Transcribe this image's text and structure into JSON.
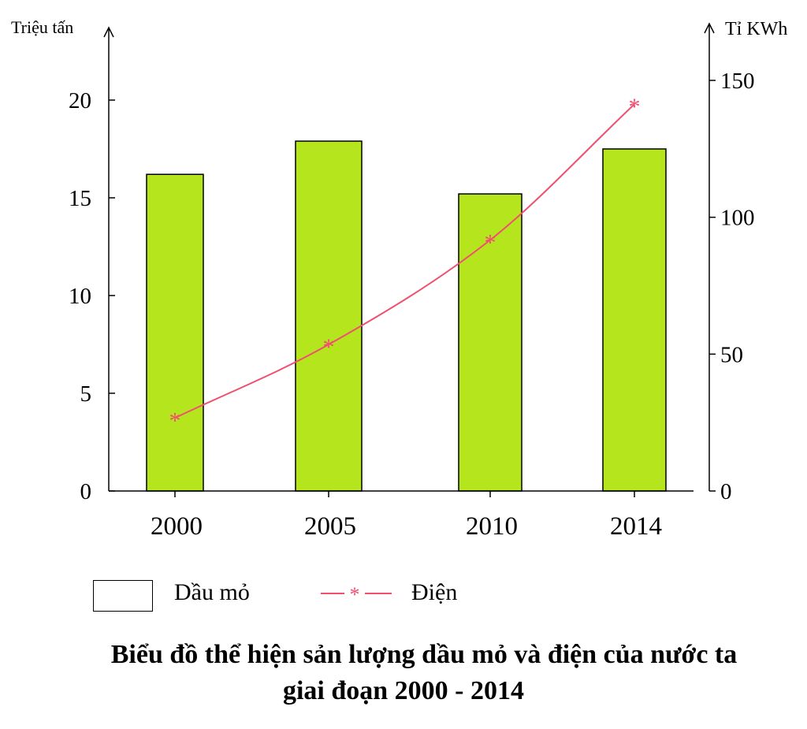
{
  "chart_data": {
    "type": "bar",
    "title": "Biểu đồ thể hiện sản lượng dầu mỏ và điện của nước ta giai đoạn 2000 - 2014",
    "title_lines": [
      "Biểu đồ thể hiện sản lượng dầu mỏ và điện của nước ta",
      "giai đoạn 2000 - 2014"
    ],
    "categories": [
      "2000",
      "2005",
      "2010",
      "2014"
    ],
    "y_left": {
      "label": "Triệu tấn",
      "ticks": [
        0,
        5,
        10,
        15,
        20
      ],
      "ylim": [
        0,
        20
      ]
    },
    "y_right": {
      "label": "Tỉ KWh",
      "ticks": [
        0,
        50,
        100,
        150
      ],
      "ylim": [
        0,
        150
      ]
    },
    "series": [
      {
        "name": "Dầu mỏ",
        "type": "bar",
        "axis": "left",
        "color": "#b5e61d",
        "values": [
          16.2,
          17.9,
          15.2,
          17.5
        ]
      },
      {
        "name": "Điện",
        "type": "line",
        "axis": "right",
        "color": "#f0506e",
        "marker": "*",
        "values": [
          26.7,
          53.5,
          91.7,
          141.3
        ]
      }
    ],
    "legend": "bottom-left",
    "grid": false
  }
}
